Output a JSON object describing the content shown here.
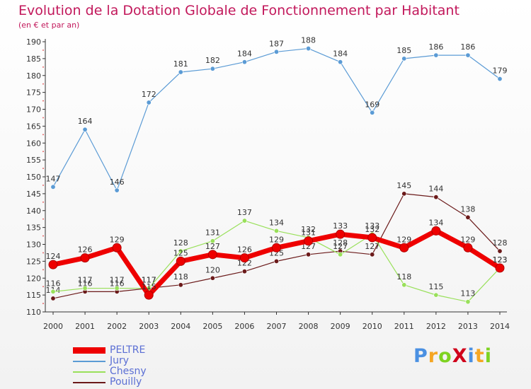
{
  "header": {
    "title": "Evolution de la Dotation Globale de Fonctionnement par Habitant",
    "subtitle": "(en € et par an)"
  },
  "brand": {
    "text": "ProXiti",
    "colors": [
      "#4a90e2",
      "#f5a623",
      "#7ed321",
      "#d0021b",
      "#4a90e2",
      "#f5a623",
      "#7ed321"
    ]
  },
  "chart_data": {
    "type": "line",
    "title": "Evolution de la Dotation Globale de Fonctionnement par Habitant",
    "subtitle": "(en € et par an)",
    "xlabel": "",
    "ylabel": "",
    "ylim": [
      110,
      190
    ],
    "yticks": [
      110,
      115,
      120,
      125,
      130,
      135,
      140,
      145,
      150,
      155,
      160,
      165,
      170,
      175,
      180,
      185,
      190
    ],
    "grid": false,
    "legend_position": "bottom-left",
    "x": [
      "2000",
      "2001",
      "2002",
      "2003",
      "2004",
      "2005",
      "2006",
      "2007",
      "2008",
      "2009",
      "2010",
      "2011",
      "2012",
      "2013",
      "2014"
    ],
    "series": [
      {
        "name": "Pouilly",
        "color": "#6b1a1a",
        "values": [
          114,
          116,
          116,
          117,
          118,
          120,
          122,
          125,
          127,
          128,
          127,
          145,
          144,
          138,
          128
        ]
      },
      {
        "name": "Chesny",
        "color": "#99e05a",
        "values": [
          116,
          117,
          117,
          117,
          128,
          131,
          137,
          134,
          132,
          127,
          133,
          118,
          115,
          113,
          123
        ]
      },
      {
        "name": "Jury",
        "color": "#5b9bd5",
        "values": [
          147,
          164,
          146,
          172,
          181,
          182,
          184,
          187,
          188,
          184,
          169,
          185,
          186,
          186,
          179
        ]
      },
      {
        "name": "PELTRE",
        "color": "#ee0000",
        "values": [
          124,
          126,
          129,
          115,
          125,
          127,
          126,
          129,
          131,
          133,
          132,
          129,
          134,
          129,
          123
        ]
      }
    ]
  }
}
